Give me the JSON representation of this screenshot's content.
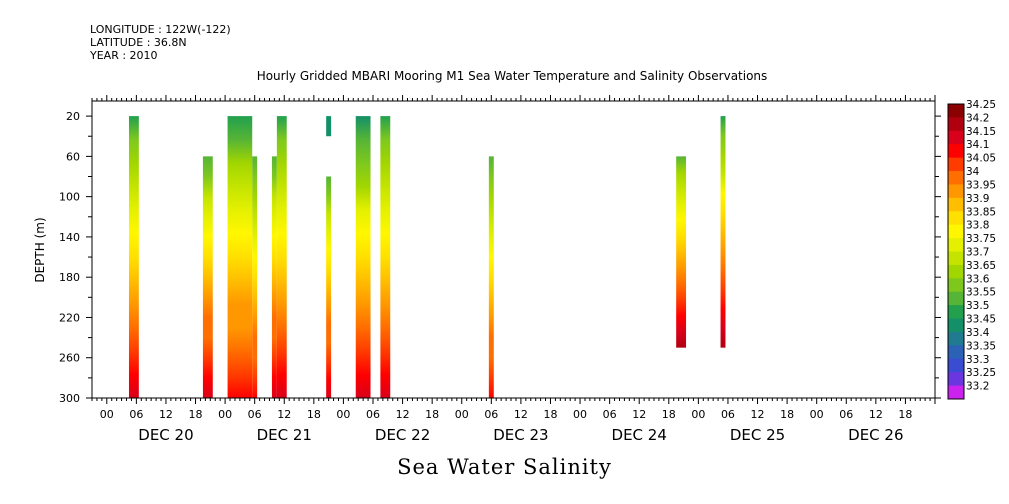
{
  "header": {
    "longitude": "LONGITUDE : 122W(-122)",
    "latitude": "LATITUDE : 36.8N",
    "year": "YEAR : 2010"
  },
  "chart_data": {
    "type": "heatmap",
    "title": "Hourly Gridded MBARI Mooring M1 Sea Water Temperature and Salinity Observations",
    "bottom_title": "Sea Water Salinity",
    "ylabel": "DEPTH (m)",
    "xlabel": "",
    "y_ticks": [
      20,
      60,
      100,
      140,
      180,
      220,
      260,
      300
    ],
    "ylim": [
      300,
      5
    ],
    "x_hour_ticks": [
      "00",
      "06",
      "12",
      "18",
      "00",
      "06",
      "12",
      "18",
      "00",
      "06",
      "12",
      "18",
      "00",
      "06",
      "12",
      "18",
      "00",
      "06",
      "12",
      "18",
      "00",
      "06",
      "12",
      "18",
      "00",
      "06",
      "12",
      "18"
    ],
    "x_day_labels": [
      "DEC 20",
      "DEC 21",
      "DEC 22",
      "DEC 23",
      "DEC 24",
      "DEC 25",
      "DEC 26"
    ],
    "xlim_hours": [
      -3,
      168
    ],
    "colorbar_levels": [
      "34.25",
      "34.2",
      "34.15",
      "34.1",
      "34.05",
      "34",
      "33.95",
      "33.9",
      "33.85",
      "33.8",
      "33.75",
      "33.7",
      "33.65",
      "33.6",
      "33.55",
      "33.5",
      "33.45",
      "33.4",
      "33.35",
      "33.3",
      "33.25",
      "33.2"
    ],
    "colorbar_colors": [
      "#8b0000",
      "#b00010",
      "#d8001a",
      "#ff0000",
      "#ff3c00",
      "#ff6e00",
      "#ff9800",
      "#ffbe00",
      "#ffe000",
      "#fff700",
      "#e4f000",
      "#c4e400",
      "#a2d600",
      "#7ec81e",
      "#56b436",
      "#22a04e",
      "#149068",
      "#207a90",
      "#2c62b6",
      "#3a4cd2",
      "#6a36e0",
      "#cc22ee"
    ],
    "series": [
      {
        "start_hour": 4.5,
        "end_hour": 6.5,
        "top_depth": 20,
        "bottom_depth": 300,
        "top_salinity": 33.5,
        "bottom_salinity": 34.15
      },
      {
        "start_hour": 19.5,
        "end_hour": 21.5,
        "top_depth": 60,
        "bottom_depth": 300,
        "top_salinity": 33.55,
        "bottom_salinity": 34.15
      },
      {
        "start_hour": 24.5,
        "end_hour": 29.5,
        "top_depth": 20,
        "bottom_depth": 300,
        "top_salinity": 33.5,
        "bottom_salinity": 34.1
      },
      {
        "start_hour": 29.5,
        "end_hour": 30.5,
        "top_depth": 60,
        "bottom_depth": 300,
        "top_salinity": 33.55,
        "bottom_salinity": 34.1
      },
      {
        "start_hour": 33.5,
        "end_hour": 34.5,
        "top_depth": 60,
        "bottom_depth": 300,
        "top_salinity": 33.55,
        "bottom_salinity": 34.15
      },
      {
        "start_hour": 34.5,
        "end_hour": 36.5,
        "top_depth": 20,
        "bottom_depth": 300,
        "top_salinity": 33.5,
        "bottom_salinity": 34.15
      },
      {
        "start_hour": 44.5,
        "end_hour": 45.5,
        "top_depth": 20,
        "bottom_depth": 40,
        "top_salinity": 33.45,
        "bottom_salinity": 33.45
      },
      {
        "start_hour": 44.5,
        "end_hour": 45.5,
        "top_depth": 80,
        "bottom_depth": 300,
        "top_salinity": 33.55,
        "bottom_salinity": 34.15
      },
      {
        "start_hour": 50.5,
        "end_hour": 53.5,
        "top_depth": 20,
        "bottom_depth": 300,
        "top_salinity": 33.45,
        "bottom_salinity": 34.15
      },
      {
        "start_hour": 55.5,
        "end_hour": 57.5,
        "top_depth": 20,
        "bottom_depth": 300,
        "top_salinity": 33.5,
        "bottom_salinity": 34.15
      },
      {
        "start_hour": 77.5,
        "end_hour": 78.5,
        "top_depth": 60,
        "bottom_depth": 300,
        "top_salinity": 33.55,
        "bottom_salinity": 34.1
      },
      {
        "start_hour": 115.5,
        "end_hour": 117.5,
        "top_depth": 60,
        "bottom_depth": 250,
        "top_salinity": 33.55,
        "bottom_salinity": 34.2
      },
      {
        "start_hour": 124.5,
        "end_hour": 125.5,
        "top_depth": 20,
        "bottom_depth": 250,
        "top_salinity": 33.5,
        "bottom_salinity": 34.2
      }
    ]
  }
}
